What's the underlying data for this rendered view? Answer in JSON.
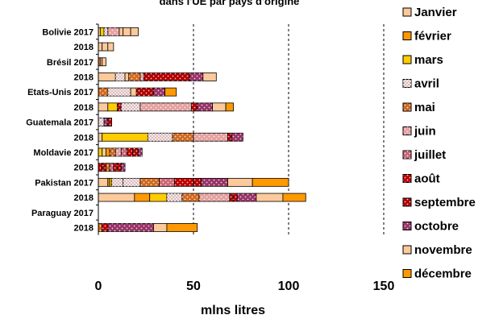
{
  "chart_data": {
    "type": "bar",
    "orientation": "horizontal",
    "stacked": true,
    "title": "dans l'UE par pays d'origine",
    "xlabel": "mlns litres",
    "ylabel": "",
    "xlim": [
      0,
      150
    ],
    "xticks": [
      0,
      50,
      100,
      150
    ],
    "grid": "vertical dashed",
    "legend_position": "right",
    "categories": [
      "Bolivie 2017",
      "2018",
      "Brésil 2017",
      "2018",
      "Etats-Unis 2017",
      "2018",
      "Guatemala 2017",
      "2018",
      "Moldavie 2017",
      "2018",
      "Pakistan 2017",
      "2018",
      "Paraguay 2017",
      "2018"
    ],
    "series": [
      {
        "name": "Janvier",
        "color": "#FCC99B",
        "pattern": "solid",
        "values": [
          1,
          0,
          0,
          9,
          0,
          5,
          0,
          2,
          1,
          0.5,
          5,
          19,
          0,
          0
        ]
      },
      {
        "name": "février",
        "color": "#FF9900",
        "pattern": "solid",
        "values": [
          1,
          0,
          0,
          0,
          0,
          1,
          0,
          0,
          0.5,
          0.5,
          0,
          8,
          0,
          0
        ]
      },
      {
        "name": "mars",
        "color": "#FFCC00",
        "pattern": "solid",
        "values": [
          2,
          0,
          0,
          0,
          0,
          4,
          0,
          24,
          0.5,
          0.5,
          0,
          9,
          0,
          0
        ]
      },
      {
        "name": "avril",
        "color": "#DDBBBB",
        "pattern": "check",
        "values": [
          2,
          0,
          0,
          5,
          0,
          1,
          0,
          0,
          1,
          0.5,
          6,
          0,
          0,
          0
        ]
      },
      {
        "name": "mai",
        "color": "#D2691E",
        "pattern": "dots",
        "values": [
          0,
          0,
          0,
          0,
          5,
          0,
          0,
          0,
          1,
          0.5,
          0,
          0,
          0,
          1
        ]
      },
      {
        "name": "juin",
        "color": "#E6A0A0",
        "pattern": "dots",
        "values": [
          2,
          0,
          0,
          0,
          0,
          0,
          0,
          0,
          1,
          0.5,
          0,
          7,
          0,
          0
        ]
      },
      {
        "name": "juillet",
        "color": "#CC6677",
        "pattern": "dots",
        "values": [
          0,
          0,
          0,
          0,
          0,
          0,
          0,
          0,
          1,
          0.5,
          0,
          0,
          0,
          0
        ]
      },
      {
        "name": "août",
        "color": "#C00000",
        "pattern": "dots",
        "values": [
          0,
          0,
          0,
          0,
          0,
          0,
          0,
          0,
          1,
          1,
          0,
          0,
          0,
          0
        ]
      },
      {
        "name": "septembre",
        "color": "#B00000",
        "pattern": "dots",
        "values": [
          0,
          0,
          0,
          0,
          0,
          0,
          0,
          0,
          1,
          1,
          0,
          0,
          0,
          0
        ]
      },
      {
        "name": "octobre",
        "color": "#993366",
        "pattern": "dots",
        "values": [
          2,
          0,
          0,
          0,
          0,
          0,
          0,
          0,
          1,
          1,
          0,
          0,
          0,
          0
        ]
      },
      {
        "name": "novembre",
        "color": "#FCC99B",
        "pattern": "solid",
        "values": [
          0,
          0,
          0,
          0,
          0,
          0,
          0,
          0,
          1,
          1,
          0,
          0,
          0,
          0
        ]
      },
      {
        "name": "décembre",
        "color": "#FF9900",
        "pattern": "solid",
        "values": [
          0,
          0,
          0,
          0,
          0,
          0,
          0,
          0,
          1,
          1,
          0,
          0,
          0,
          0
        ]
      }
    ],
    "segments": [
      [
        {
          "m": 0,
          "v": 1
        },
        {
          "m": 2,
          "v": 2
        },
        {
          "m": 3,
          "v": 2
        },
        {
          "m": 5,
          "v": 6
        },
        {
          "m": 0,
          "v": 2
        },
        {
          "m": 0,
          "v": 4
        },
        {
          "m": 0,
          "v": 4
        }
      ],
      [
        {
          "m": 0,
          "v": 2
        },
        {
          "m": 0,
          "v": 3
        },
        {
          "m": 0,
          "v": 3
        }
      ],
      [
        {
          "m": 4,
          "v": 1
        },
        {
          "m": 0,
          "v": 1
        },
        {
          "m": 0,
          "v": 2
        }
      ],
      [
        {
          "m": 0,
          "v": 9
        },
        {
          "m": 3,
          "v": 5
        },
        {
          "m": 0,
          "v": 2
        },
        {
          "m": 4,
          "v": 6
        },
        {
          "m": 5,
          "v": 2
        },
        {
          "m": 8,
          "v": 24
        },
        {
          "m": 9,
          "v": 7
        },
        {
          "m": 10,
          "v": 7
        }
      ],
      [
        {
          "m": 4,
          "v": 5
        },
        {
          "m": 3,
          "v": 12
        },
        {
          "m": 0,
          "v": 3
        },
        {
          "m": 8,
          "v": 9
        },
        {
          "m": 9,
          "v": 6
        },
        {
          "m": 11,
          "v": 6
        }
      ],
      [
        {
          "m": 0,
          "v": 5
        },
        {
          "m": 2,
          "v": 5
        },
        {
          "m": 8,
          "v": 2
        },
        {
          "m": 3,
          "v": 10
        },
        {
          "m": 5,
          "v": 27
        },
        {
          "m": 8,
          "v": 3
        },
        {
          "m": 9,
          "v": 8
        },
        {
          "m": 10,
          "v": 7
        },
        {
          "m": 11,
          "v": 4
        }
      ],
      [
        {
          "m": 3,
          "v": 3
        },
        {
          "m": 9,
          "v": 2
        },
        {
          "m": 8,
          "v": 2
        }
      ],
      [
        {
          "m": 0,
          "v": 2
        },
        {
          "m": 2,
          "v": 24
        },
        {
          "m": 3,
          "v": 13
        },
        {
          "m": 4,
          "v": 11
        },
        {
          "m": 5,
          "v": 18
        },
        {
          "m": 8,
          "v": 2
        },
        {
          "m": 9,
          "v": 6
        }
      ],
      [
        {
          "m": 2,
          "v": 2
        },
        {
          "m": 0,
          "v": 2
        },
        {
          "m": 1,
          "v": 2
        },
        {
          "m": 4,
          "v": 3
        },
        {
          "m": 5,
          "v": 3
        },
        {
          "m": 6,
          "v": 3
        },
        {
          "m": 7,
          "v": 3
        },
        {
          "m": 8,
          "v": 3
        },
        {
          "m": 9,
          "v": 2
        }
      ],
      [
        {
          "m": 7,
          "v": 2
        },
        {
          "m": 8,
          "v": 2
        },
        {
          "m": 4,
          "v": 2
        },
        {
          "m": 6,
          "v": 2
        },
        {
          "m": 7,
          "v": 2
        },
        {
          "m": 8,
          "v": 2
        },
        {
          "m": 9,
          "v": 2
        }
      ],
      [
        {
          "m": 0,
          "v": 5
        },
        {
          "m": 1,
          "v": 1
        },
        {
          "m": 2,
          "v": 1
        },
        {
          "m": 3,
          "v": 6
        },
        {
          "m": 3,
          "v": 9
        },
        {
          "m": 4,
          "v": 10
        },
        {
          "m": 6,
          "v": 8
        },
        {
          "m": 7,
          "v": 10
        },
        {
          "m": 8,
          "v": 4
        },
        {
          "m": 9,
          "v": 14
        },
        {
          "m": 10,
          "v": 13
        },
        {
          "m": 11,
          "v": 19
        }
      ],
      [
        {
          "m": 0,
          "v": 19
        },
        {
          "m": 1,
          "v": 8
        },
        {
          "m": 2,
          "v": 9
        },
        {
          "m": 3,
          "v": 8
        },
        {
          "m": 4,
          "v": 9
        },
        {
          "m": 5,
          "v": 16
        },
        {
          "m": 8,
          "v": 2
        },
        {
          "m": 7,
          "v": 2
        },
        {
          "m": 9,
          "v": 10
        },
        {
          "m": 10,
          "v": 14
        },
        {
          "m": 11,
          "v": 12
        }
      ],
      [],
      [
        {
          "m": 4,
          "v": 2
        },
        {
          "m": 7,
          "v": 3
        },
        {
          "m": 9,
          "v": 24
        },
        {
          "m": 10,
          "v": 7
        },
        {
          "m": 11,
          "v": 16
        }
      ]
    ]
  }
}
